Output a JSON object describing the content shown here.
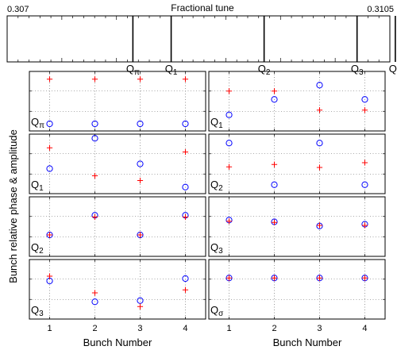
{
  "chart_data": {
    "type": "scatter",
    "tune_bar": {
      "title": "Fractional tune",
      "xlim": [
        0.307,
        0.3105
      ],
      "xmin_label": "0.307",
      "xmax_label": "0.3105",
      "modes": [
        {
          "label": "Q",
          "sub": "π",
          "tune": 0.30815
        },
        {
          "label": "Q",
          "sub": "1",
          "tune": 0.3085
        },
        {
          "label": "Q",
          "sub": "2",
          "tune": 0.30935
        },
        {
          "label": "Q",
          "sub": "3",
          "tune": 0.3102
        },
        {
          "label": "Q",
          "sub": "σ",
          "tune": 0.31055
        }
      ]
    },
    "ylabel": "Bunch relative phase & amplitude",
    "xlabel": "Bunch Number",
    "categories": [
      "1",
      "2",
      "3",
      "4"
    ],
    "panels": [
      {
        "mode": "Q",
        "sub": "π",
        "plus": [
          0.87,
          0.87,
          0.87,
          0.87
        ],
        "circle": [
          0.12,
          0.12,
          0.12,
          0.12
        ]
      },
      {
        "mode": "Q",
        "sub": "1",
        "plus": [
          0.67,
          0.67,
          0.35,
          0.35
        ],
        "circle": [
          0.27,
          0.53,
          0.77,
          0.53
        ]
      },
      {
        "mode": "Q",
        "sub": "1",
        "plus": [
          0.77,
          0.3,
          0.22,
          0.7
        ],
        "circle": [
          0.42,
          0.93,
          0.5,
          0.11
        ]
      },
      {
        "mode": "Q",
        "sub": "2",
        "plus": [
          0.45,
          0.49,
          0.44,
          0.52
        ],
        "circle": [
          0.85,
          0.15,
          0.85,
          0.15
        ]
      },
      {
        "mode": "Q",
        "sub": "2",
        "plus": [
          0.36,
          0.66,
          0.36,
          0.66
        ],
        "circle": [
          0.36,
          0.69,
          0.36,
          0.69
        ]
      },
      {
        "mode": "Q",
        "sub": "3",
        "plus": [
          0.59,
          0.57,
          0.52,
          0.52
        ],
        "circle": [
          0.61,
          0.58,
          0.51,
          0.54
        ]
      },
      {
        "mode": "Q",
        "sub": "3",
        "plus": [
          0.72,
          0.44,
          0.21,
          0.49
        ],
        "circle": [
          0.64,
          0.29,
          0.31,
          0.68
        ]
      },
      {
        "mode": "Q",
        "sub": "σ",
        "plus": [
          0.69,
          0.69,
          0.69,
          0.69
        ],
        "circle": [
          0.69,
          0.69,
          0.69,
          0.69
        ]
      }
    ],
    "colors": {
      "plus": "#ff0000",
      "circle": "#0000ff"
    },
    "grid": true
  }
}
